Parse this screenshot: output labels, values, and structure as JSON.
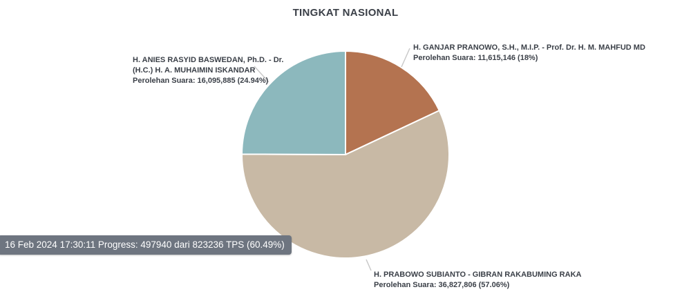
{
  "header": {
    "title": "TINGKAT NASIONAL"
  },
  "status": {
    "tooltip_text": "16 Feb 2024 17:30:11 Progress: 497940 dari 823236 TPS (60.49%)",
    "timestamp": "16 Feb 2024 17:30:11",
    "progress_counted_tps": 497940,
    "progress_total_tps": 823236,
    "progress_pct": "60.49%",
    "tooltip_bg": "#6e7580"
  },
  "chart_data": {
    "type": "pie",
    "title": "TINGKAT NASIONAL",
    "legend_position": "none",
    "start_angle_deg": 0,
    "direction": "clockwise",
    "slice_border_color": "#ffffff",
    "leader_line_color": "#c9c9c9",
    "slices": [
      {
        "candidate": "H. GANJAR PRANOWO, S.H., M.I.P. - Prof. Dr. H. M. MAHFUD MD",
        "name_lines": [
          "H. GANJAR PRANOWO, S.H., M.I.P. - Prof. Dr. H. M. MAHFUD MD"
        ],
        "votes": 11615146,
        "pct": 18,
        "votes_line": "Perolehan Suara: 11,615,146 (18%)",
        "color": "#b47350"
      },
      {
        "candidate": "H. PRABOWO SUBIANTO - GIBRAN RAKABUMING RAKA",
        "name_lines": [
          "H. PRABOWO SUBIANTO - GIBRAN RAKABUMING RAKA"
        ],
        "votes": 36827806,
        "pct": 57.06,
        "votes_line": "Perolehan Suara: 36,827,806 (57.06%)",
        "color": "#c8b9a5"
      },
      {
        "candidate": "H. ANIES RASYID BASWEDAN, Ph.D. - Dr. (H.C.) H. A. MUHAIMIN ISKANDAR",
        "name_lines": [
          "H. ANIES RASYID BASWEDAN, Ph.D. - Dr.",
          "(H.C.) H. A. MUHAIMIN ISKANDAR"
        ],
        "votes": 16095885,
        "pct": 24.94,
        "votes_line": "Perolehan Suara: 16,095,885 (24.94%)",
        "color": "#8cb8bd"
      }
    ]
  }
}
